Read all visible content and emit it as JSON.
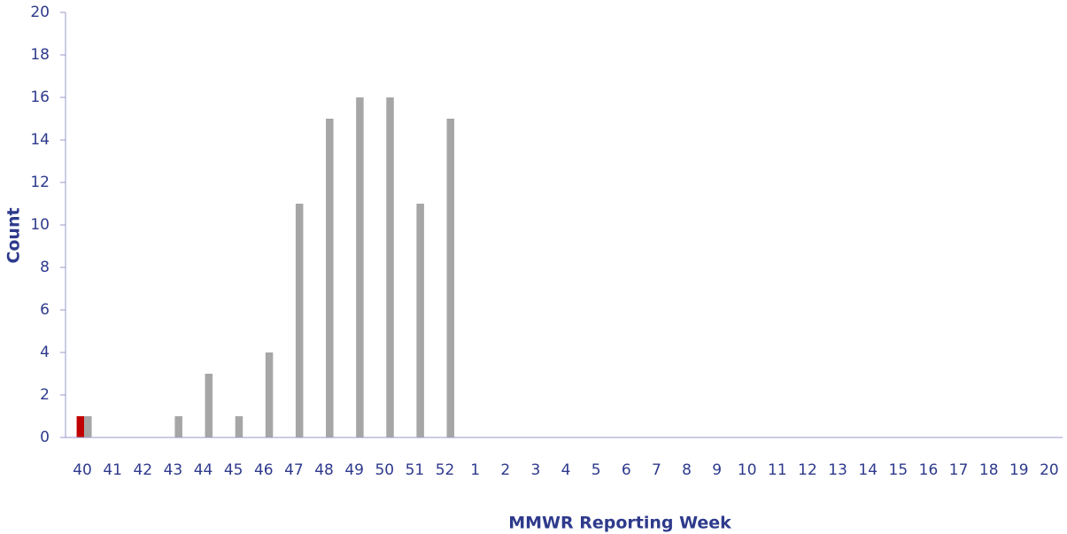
{
  "chart_data": {
    "type": "bar",
    "x_label": "MMWR Reporting Week",
    "y_label": "Count",
    "categories": [
      "40",
      "41",
      "42",
      "43",
      "44",
      "45",
      "46",
      "47",
      "48",
      "49",
      "50",
      "51",
      "52",
      "1",
      "2",
      "3",
      "4",
      "5",
      "6",
      "7",
      "8",
      "9",
      "10",
      "11",
      "12",
      "13",
      "14",
      "15",
      "16",
      "17",
      "18",
      "19",
      "20"
    ],
    "series": [
      {
        "color": "#c00000",
        "values": [
          1,
          0,
          0,
          0,
          0,
          0,
          0,
          0,
          0,
          0,
          0,
          0,
          0,
          0,
          0,
          0,
          0,
          0,
          0,
          0,
          0,
          0,
          0,
          0,
          0,
          0,
          0,
          0,
          0,
          0,
          0,
          0,
          0
        ]
      },
      {
        "color": "#a6a6a6",
        "values": [
          1,
          0,
          0,
          1,
          3,
          1,
          4,
          11,
          15,
          16,
          16,
          11,
          15,
          0,
          0,
          0,
          0,
          0,
          0,
          0,
          0,
          0,
          0,
          0,
          0,
          0,
          0,
          0,
          0,
          0,
          0,
          0,
          0
        ]
      }
    ],
    "ylim": [
      0,
      20
    ],
    "yticks": [
      0,
      2,
      4,
      6,
      8,
      10,
      12,
      14,
      16,
      18,
      20
    ],
    "grid": false
  }
}
